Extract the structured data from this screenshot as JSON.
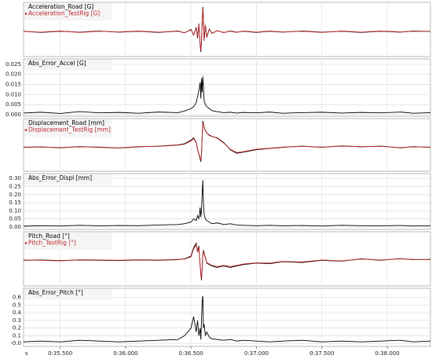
{
  "chart_data": [
    {
      "type": "line",
      "xlim": [
        35.22,
        38.33
      ],
      "ylim": [
        -1.1,
        1.3
      ],
      "x": [
        35.22,
        35.35,
        35.5,
        35.65,
        35.8,
        35.95,
        36.1,
        36.25,
        36.4,
        36.45,
        36.5,
        36.52,
        36.54,
        36.55,
        36.56,
        36.57,
        36.575,
        36.58,
        36.585,
        36.59,
        36.595,
        36.6,
        36.61,
        36.62,
        36.64,
        36.66,
        36.7,
        36.75,
        36.8,
        36.85,
        36.9,
        37.0,
        37.1,
        37.2,
        37.35,
        37.5,
        37.65,
        37.8,
        37.95,
        38.1,
        38.2,
        38.33
      ],
      "series": [
        {
          "name": "Acceleration_Road [G]",
          "color": "#000000",
          "values": [
            0.02,
            -0.03,
            0.02,
            -0.02,
            0.03,
            -0.02,
            0.02,
            -0.03,
            0.03,
            -0.05,
            0.1,
            -0.15,
            0.2,
            -0.3,
            0.35,
            -0.6,
            -0.9,
            -0.5,
            0.4,
            1.1,
            0.6,
            -0.4,
            0.3,
            -0.25,
            0.12,
            -0.08,
            0.05,
            -0.04,
            0.03,
            -0.02,
            0.02,
            -0.03,
            0.02,
            -0.02,
            0.03,
            -0.02,
            0.02,
            -0.03,
            0.02,
            -0.02,
            0.03,
            0.01
          ]
        },
        {
          "name": "Acceleration_TestRig [G]",
          "color": "#c0282d",
          "values": [
            0.01,
            -0.02,
            0.03,
            -0.03,
            0.02,
            -0.01,
            0.03,
            -0.02,
            0.02,
            -0.04,
            0.08,
            -0.13,
            0.18,
            -0.28,
            0.33,
            -0.55,
            -0.85,
            -0.45,
            0.45,
            1.05,
            0.55,
            -0.38,
            0.28,
            -0.22,
            0.1,
            -0.07,
            0.04,
            -0.03,
            0.02,
            -0.03,
            0.03,
            -0.02,
            0.03,
            -0.01,
            0.02,
            -0.03,
            0.03,
            -0.02,
            0.03,
            -0.01,
            0.02,
            0.02
          ]
        }
      ]
    },
    {
      "type": "line",
      "xlim": [
        35.22,
        38.33
      ],
      "ylim": [
        -0.0008,
        0.0277
      ],
      "yticks": [
        0.025,
        {
          "value": 0.02,
          "label": "0.020"
        },
        0.015,
        {
          "value": 0.01,
          "label": "0.010"
        },
        0.005,
        {
          "value": 0,
          "label": "0.000"
        }
      ],
      "grid": true,
      "x": [
        35.22,
        35.35,
        35.5,
        35.65,
        35.8,
        35.95,
        36.1,
        36.25,
        36.4,
        36.45,
        36.5,
        36.52,
        36.54,
        36.55,
        36.56,
        36.57,
        36.575,
        36.58,
        36.585,
        36.59,
        36.595,
        36.6,
        36.61,
        36.62,
        36.64,
        36.66,
        36.7,
        36.75,
        36.8,
        36.85,
        36.9,
        37.0,
        37.1,
        37.2,
        37.35,
        37.5,
        37.65,
        37.8,
        37.95,
        38.1,
        38.2,
        38.33
      ],
      "series": [
        {
          "name": "Abs_Error_Accel [G]",
          "color": "#000000",
          "values": [
            0.0008,
            0.0012,
            0.0006,
            0.0015,
            0.0009,
            0.0011,
            0.0007,
            0.0013,
            0.001,
            0.0018,
            0.003,
            0.004,
            0.006,
            0.009,
            0.012,
            0.016,
            0.008,
            0.018,
            0.011,
            0.019,
            0.014,
            0.007,
            0.005,
            0.004,
            0.003,
            0.002,
            0.0015,
            0.001,
            0.0012,
            0.0008,
            0.0011,
            0.0009,
            0.0013,
            0.0007,
            0.001,
            0.0012,
            0.0008,
            0.0011,
            0.0009,
            0.0013,
            0.0007,
            0.001
          ]
        }
      ]
    },
    {
      "type": "line",
      "xlim": [
        35.22,
        38.33
      ],
      "ylim": [
        -1.0,
        1.2
      ],
      "x": [
        35.22,
        35.35,
        35.5,
        35.65,
        35.8,
        35.95,
        36.1,
        36.25,
        36.4,
        36.45,
        36.5,
        36.52,
        36.54,
        36.55,
        36.56,
        36.57,
        36.575,
        36.58,
        36.585,
        36.59,
        36.595,
        36.6,
        36.61,
        36.62,
        36.64,
        36.66,
        36.7,
        36.75,
        36.8,
        36.85,
        36.9,
        37.0,
        37.1,
        37.2,
        37.35,
        37.5,
        37.65,
        37.8,
        37.95,
        38.1,
        38.2,
        38.33
      ],
      "series": [
        {
          "name": "Displacement_Road [mm]",
          "color": "#000000",
          "values": [
            0,
            0.02,
            -0.02,
            0.03,
            0,
            -0.03,
            0.02,
            0.05,
            0.1,
            0.15,
            0.3,
            0.4,
            0.2,
            -0.1,
            -0.3,
            -0.5,
            -0.6,
            -0.3,
            0.4,
            1.1,
            1.0,
            0.85,
            0.7,
            0.6,
            0.5,
            0.45,
            0.4,
            0.2,
            -0.1,
            -0.25,
            -0.2,
            -0.1,
            -0.05,
            0.0,
            0.05,
            0.0,
            0.06,
            0.02,
            0.05,
            -0.02,
            0.03,
            0.0
          ]
        },
        {
          "name": "Displacement_TestRig [mm]",
          "color": "#c0282d",
          "values": [
            0.01,
            0.01,
            -0.01,
            0.02,
            0.01,
            -0.02,
            0.03,
            0.04,
            0.09,
            0.13,
            0.27,
            0.37,
            0.18,
            -0.08,
            -0.27,
            -0.46,
            -0.55,
            -0.26,
            0.42,
            1.05,
            0.97,
            0.83,
            0.68,
            0.6,
            0.52,
            0.46,
            0.38,
            0.18,
            -0.08,
            -0.22,
            -0.18,
            -0.08,
            -0.04,
            0.01,
            0.04,
            0.01,
            0.05,
            0.03,
            0.04,
            -0.01,
            0.02,
            0.01
          ]
        }
      ]
    },
    {
      "type": "line",
      "xlim": [
        35.22,
        38.33
      ],
      "ylim": [
        -0.015,
        0.33
      ],
      "yticks": [
        {
          "value": 0.3,
          "label": "0.30"
        },
        0.25,
        {
          "value": 0.2,
          "label": "0.20"
        },
        0.15,
        {
          "value": 0.1,
          "label": "0.10"
        },
        0.05,
        {
          "value": 0,
          "label": "0.00"
        }
      ],
      "grid": true,
      "x": [
        35.22,
        35.35,
        35.5,
        35.65,
        35.8,
        35.95,
        36.1,
        36.25,
        36.4,
        36.45,
        36.5,
        36.52,
        36.54,
        36.55,
        36.56,
        36.57,
        36.575,
        36.58,
        36.585,
        36.59,
        36.595,
        36.6,
        36.61,
        36.62,
        36.64,
        36.66,
        36.7,
        36.75,
        36.8,
        36.85,
        36.9,
        37.0,
        37.1,
        37.2,
        37.35,
        37.5,
        37.65,
        37.8,
        37.95,
        38.1,
        38.2,
        38.33
      ],
      "series": [
        {
          "name": "Abs_Error_Displ [mm]",
          "color": "#000000",
          "values": [
            0.005,
            0.008,
            0.006,
            0.01,
            0.007,
            0.009,
            0.008,
            0.012,
            0.015,
            0.02,
            0.03,
            0.05,
            0.04,
            0.07,
            0.05,
            0.12,
            0.06,
            0.1,
            0.2,
            0.29,
            0.15,
            0.08,
            0.05,
            0.04,
            0.03,
            0.02,
            0.025,
            0.015,
            0.02,
            0.012,
            0.01,
            0.008,
            0.01,
            0.007,
            0.009,
            0.006,
            0.01,
            0.008,
            0.007,
            0.009,
            0.006,
            0.008
          ]
        }
      ]
    },
    {
      "type": "line",
      "xlim": [
        35.22,
        38.33
      ],
      "ylim": [
        -0.9,
        1.0
      ],
      "x": [
        35.22,
        35.35,
        35.5,
        35.65,
        35.8,
        35.95,
        36.1,
        36.25,
        36.4,
        36.45,
        36.5,
        36.52,
        36.54,
        36.55,
        36.56,
        36.57,
        36.575,
        36.58,
        36.585,
        36.59,
        36.595,
        36.6,
        36.61,
        36.62,
        36.64,
        36.66,
        36.7,
        36.75,
        36.8,
        36.85,
        36.9,
        37.0,
        37.1,
        37.2,
        37.35,
        37.5,
        37.65,
        37.8,
        37.95,
        38.1,
        38.2,
        38.33
      ],
      "series": [
        {
          "name": "Pitch_Road [°]",
          "color": "#000000",
          "values": [
            0,
            0.01,
            -0.01,
            0.01,
            0,
            -0.01,
            0.01,
            0,
            0.02,
            0.05,
            0.15,
            0.45,
            0.6,
            0.3,
            0.5,
            -0.2,
            -0.5,
            -0.7,
            -0.3,
            0.2,
            0.35,
            0.25,
            0.1,
            -0.1,
            -0.15,
            -0.2,
            -0.25,
            -0.2,
            -0.25,
            -0.2,
            -0.15,
            -0.1,
            -0.12,
            -0.05,
            -0.08,
            0,
            -0.03,
            0.05,
            0.0,
            0.06,
            0.02,
            0.03
          ]
        },
        {
          "name": "Pitch_TestRig [°]",
          "color": "#c0282d",
          "values": [
            0.01,
            0,
            -0.02,
            0.02,
            0.01,
            0,
            0.02,
            0.01,
            0.03,
            0.04,
            0.12,
            0.4,
            0.55,
            0.28,
            0.45,
            -0.18,
            -0.45,
            -0.65,
            -0.28,
            0.18,
            0.3,
            0.22,
            0.08,
            -0.08,
            -0.13,
            -0.18,
            -0.22,
            -0.18,
            -0.22,
            -0.18,
            -0.13,
            -0.09,
            -0.1,
            -0.04,
            -0.06,
            0.01,
            -0.02,
            0.04,
            0.01,
            0.05,
            0.03,
            0.02
          ]
        }
      ]
    },
    {
      "type": "line",
      "xlim": [
        35.22,
        38.33
      ],
      "ylim": [
        -0.04,
        0.72
      ],
      "yticks": [
        0.6,
        0.5,
        0.4,
        0.3,
        0.2,
        0.1,
        {
          "value": 0,
          "label": "-0.0"
        }
      ],
      "grid": true,
      "xlabel": "s",
      "xticks": [
        {
          "value": 35.5,
          "label": "0:35.500"
        },
        {
          "value": 36.0,
          "label": "0:36.000"
        },
        {
          "value": 36.5,
          "label": "0:36.500"
        },
        {
          "value": 37.0,
          "label": "0:37.000"
        },
        {
          "value": 37.5,
          "label": "0:37.500"
        },
        {
          "value": 38.0,
          "label": "0:38.000"
        }
      ],
      "x": [
        35.22,
        35.35,
        35.5,
        35.65,
        35.8,
        35.95,
        36.1,
        36.25,
        36.4,
        36.45,
        36.5,
        36.52,
        36.54,
        36.55,
        36.56,
        36.57,
        36.575,
        36.58,
        36.585,
        36.59,
        36.595,
        36.6,
        36.61,
        36.62,
        36.64,
        36.66,
        36.7,
        36.75,
        36.8,
        36.85,
        36.9,
        37.0,
        37.1,
        37.2,
        37.35,
        37.5,
        37.65,
        37.8,
        37.95,
        38.1,
        38.2,
        38.33
      ],
      "series": [
        {
          "name": "Abs_Error_Pitch [°]",
          "color": "#000000",
          "values": [
            0.02,
            0.03,
            0.02,
            0.04,
            0.03,
            0.02,
            0.03,
            0.04,
            0.05,
            0.1,
            0.2,
            0.35,
            0.15,
            0.3,
            0.1,
            0.2,
            0.05,
            0.3,
            0.55,
            0.62,
            0.2,
            0.25,
            0.1,
            0.15,
            0.08,
            0.06,
            0.05,
            0.04,
            0.05,
            0.03,
            0.04,
            0.03,
            0.02,
            0.03,
            0.04,
            0.02,
            0.03,
            0.02,
            0.03,
            0.04,
            0.02,
            0.03
          ]
        }
      ]
    }
  ]
}
